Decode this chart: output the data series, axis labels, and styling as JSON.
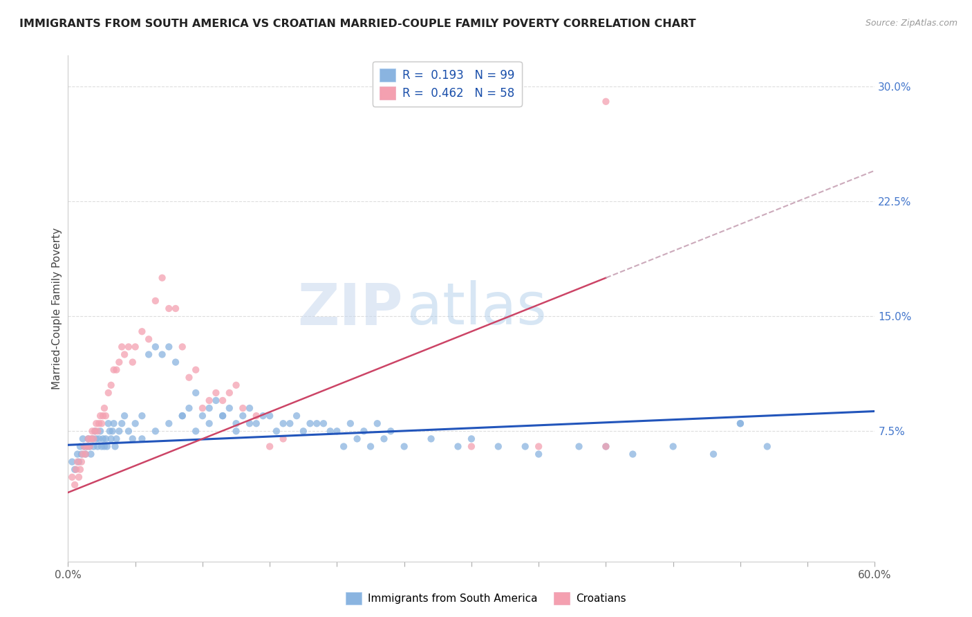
{
  "title": "IMMIGRANTS FROM SOUTH AMERICA VS CROATIAN MARRIED-COUPLE FAMILY POVERTY CORRELATION CHART",
  "source": "Source: ZipAtlas.com",
  "ylabel": "Married-Couple Family Poverty",
  "right_yticks": [
    0.075,
    0.15,
    0.225,
    0.3
  ],
  "right_yticklabels": [
    "7.5%",
    "15.0%",
    "22.5%",
    "30.0%"
  ],
  "xlim": [
    0.0,
    0.6
  ],
  "ylim": [
    -0.01,
    0.32
  ],
  "blue_color": "#8ab4e0",
  "pink_color": "#f4a0b0",
  "trend_blue_color": "#2255bb",
  "trend_pink_color": "#cc4466",
  "trend_pink_dash_color": "#ccaabb",
  "legend_R_blue": "0.193",
  "legend_N_blue": "99",
  "legend_R_pink": "0.462",
  "legend_N_pink": "58",
  "watermark_zip": "ZIP",
  "watermark_atlas": "atlas",
  "blue_scatter_x": [
    0.003,
    0.005,
    0.007,
    0.008,
    0.009,
    0.01,
    0.011,
    0.012,
    0.013,
    0.014,
    0.015,
    0.016,
    0.017,
    0.018,
    0.019,
    0.02,
    0.021,
    0.022,
    0.023,
    0.024,
    0.025,
    0.026,
    0.027,
    0.028,
    0.029,
    0.03,
    0.031,
    0.032,
    0.033,
    0.034,
    0.035,
    0.036,
    0.038,
    0.04,
    0.042,
    0.045,
    0.048,
    0.05,
    0.055,
    0.06,
    0.065,
    0.07,
    0.075,
    0.08,
    0.085,
    0.09,
    0.095,
    0.1,
    0.105,
    0.11,
    0.115,
    0.12,
    0.125,
    0.13,
    0.135,
    0.14,
    0.15,
    0.16,
    0.17,
    0.18,
    0.19,
    0.2,
    0.21,
    0.22,
    0.23,
    0.24,
    0.25,
    0.27,
    0.29,
    0.3,
    0.32,
    0.34,
    0.35,
    0.38,
    0.4,
    0.42,
    0.45,
    0.48,
    0.5,
    0.52,
    0.055,
    0.065,
    0.075,
    0.085,
    0.095,
    0.105,
    0.115,
    0.125,
    0.135,
    0.145,
    0.155,
    0.165,
    0.175,
    0.185,
    0.195,
    0.205,
    0.215,
    0.225,
    0.235,
    0.5
  ],
  "blue_scatter_y": [
    0.055,
    0.05,
    0.06,
    0.055,
    0.065,
    0.06,
    0.07,
    0.065,
    0.06,
    0.065,
    0.07,
    0.065,
    0.06,
    0.07,
    0.065,
    0.075,
    0.07,
    0.065,
    0.07,
    0.075,
    0.065,
    0.07,
    0.065,
    0.07,
    0.065,
    0.08,
    0.075,
    0.07,
    0.075,
    0.08,
    0.065,
    0.07,
    0.075,
    0.08,
    0.085,
    0.075,
    0.07,
    0.08,
    0.085,
    0.125,
    0.13,
    0.125,
    0.13,
    0.12,
    0.085,
    0.09,
    0.1,
    0.085,
    0.09,
    0.095,
    0.085,
    0.09,
    0.08,
    0.085,
    0.09,
    0.08,
    0.085,
    0.08,
    0.085,
    0.08,
    0.08,
    0.075,
    0.08,
    0.075,
    0.08,
    0.075,
    0.065,
    0.07,
    0.065,
    0.07,
    0.065,
    0.065,
    0.06,
    0.065,
    0.065,
    0.06,
    0.065,
    0.06,
    0.08,
    0.065,
    0.07,
    0.075,
    0.08,
    0.085,
    0.075,
    0.08,
    0.085,
    0.075,
    0.08,
    0.085,
    0.075,
    0.08,
    0.075,
    0.08,
    0.075,
    0.065,
    0.07,
    0.065,
    0.07,
    0.08
  ],
  "pink_scatter_x": [
    0.003,
    0.005,
    0.006,
    0.007,
    0.008,
    0.009,
    0.01,
    0.011,
    0.012,
    0.013,
    0.014,
    0.015,
    0.016,
    0.017,
    0.018,
    0.019,
    0.02,
    0.021,
    0.022,
    0.023,
    0.024,
    0.025,
    0.026,
    0.027,
    0.028,
    0.03,
    0.032,
    0.034,
    0.036,
    0.038,
    0.04,
    0.042,
    0.045,
    0.048,
    0.05,
    0.055,
    0.06,
    0.065,
    0.07,
    0.075,
    0.08,
    0.085,
    0.09,
    0.095,
    0.1,
    0.105,
    0.11,
    0.115,
    0.12,
    0.125,
    0.13,
    0.14,
    0.15,
    0.16,
    0.3,
    0.35,
    0.4,
    0.4
  ],
  "pink_scatter_y": [
    0.045,
    0.04,
    0.05,
    0.055,
    0.045,
    0.05,
    0.055,
    0.06,
    0.065,
    0.06,
    0.065,
    0.07,
    0.065,
    0.07,
    0.075,
    0.07,
    0.075,
    0.08,
    0.075,
    0.08,
    0.085,
    0.08,
    0.085,
    0.09,
    0.085,
    0.1,
    0.105,
    0.115,
    0.115,
    0.12,
    0.13,
    0.125,
    0.13,
    0.12,
    0.13,
    0.14,
    0.135,
    0.16,
    0.175,
    0.155,
    0.155,
    0.13,
    0.11,
    0.115,
    0.09,
    0.095,
    0.1,
    0.095,
    0.1,
    0.105,
    0.09,
    0.085,
    0.065,
    0.07,
    0.065,
    0.065,
    0.065,
    0.29
  ],
  "blue_trend_x0": 0.0,
  "blue_trend_x1": 0.6,
  "blue_trend_y0": 0.066,
  "blue_trend_y1": 0.088,
  "pink_trend_solid_x0": 0.0,
  "pink_trend_solid_x1": 0.4,
  "pink_trend_solid_y0": 0.035,
  "pink_trend_solid_y1": 0.175,
  "pink_trend_dash_x0": 0.4,
  "pink_trend_dash_x1": 0.6,
  "pink_trend_dash_y0": 0.175,
  "pink_trend_dash_y1": 0.245
}
